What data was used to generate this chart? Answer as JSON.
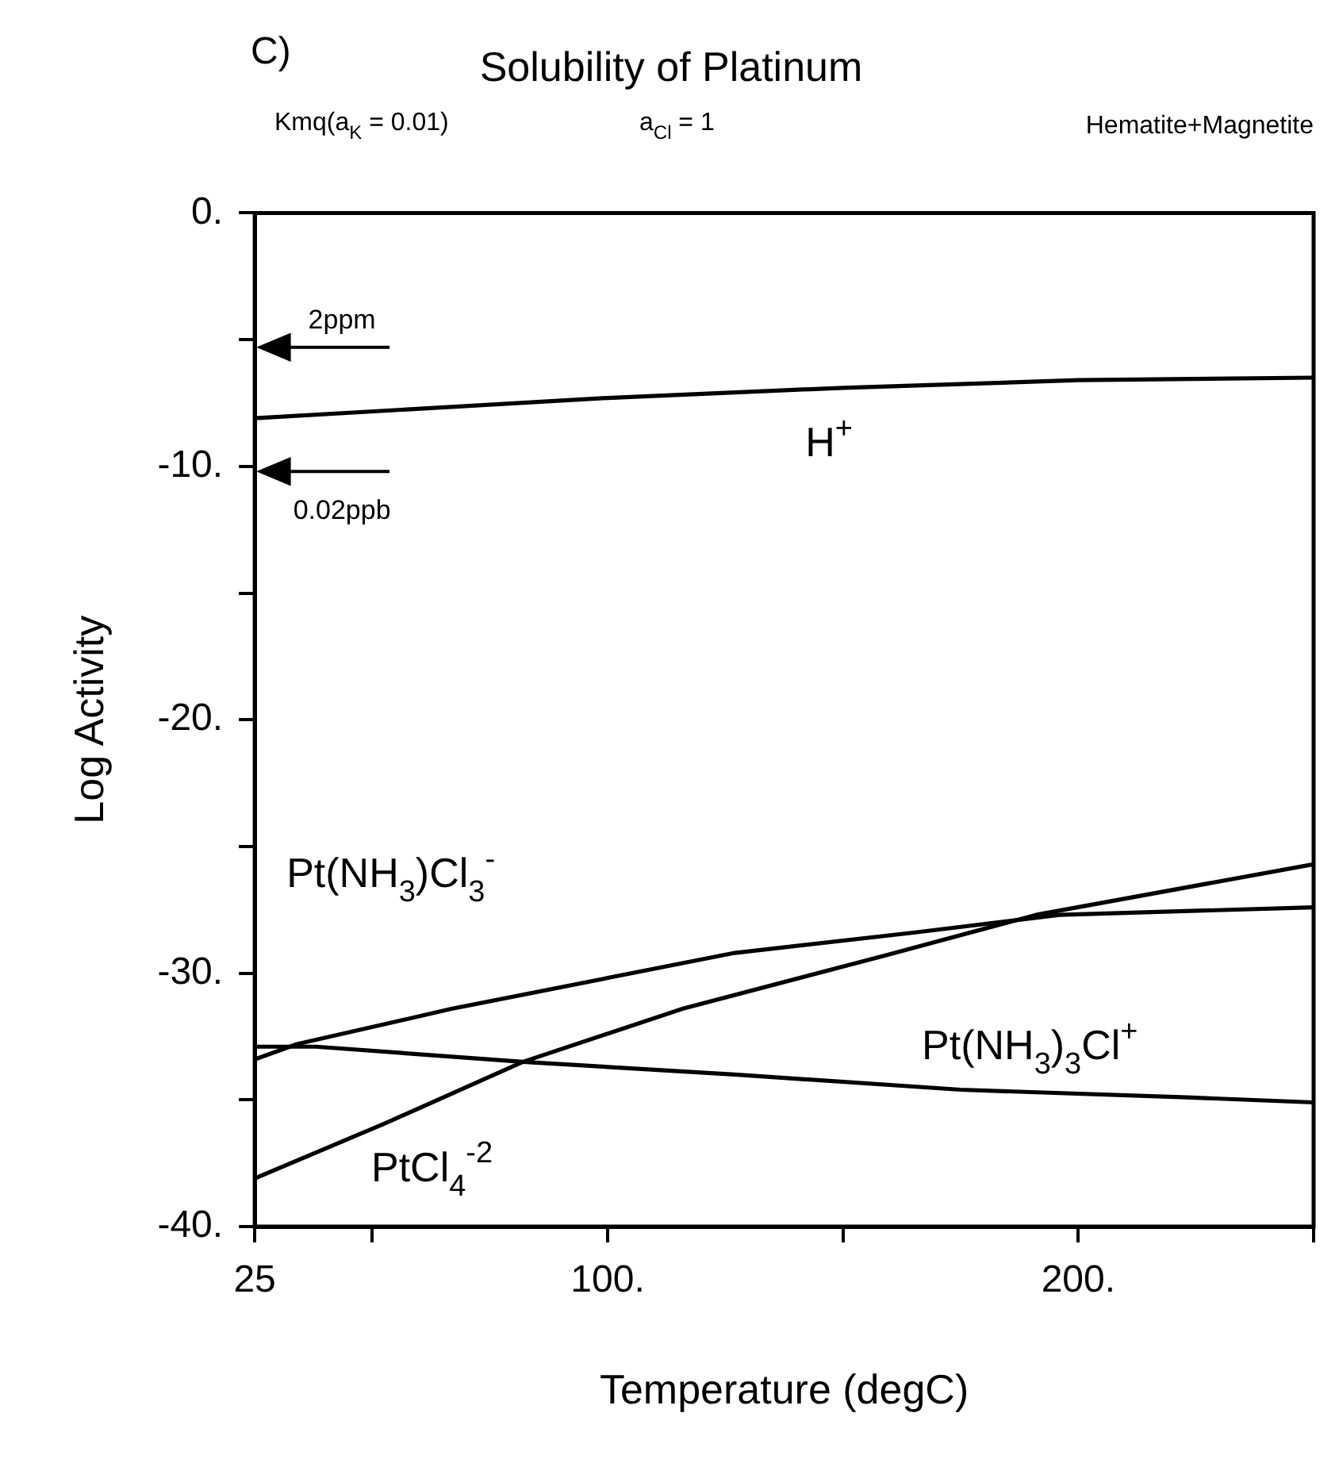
{
  "chart_data": {
    "type": "line",
    "title": "Solubility of Platinum",
    "xlabel": "Temperature (degC)",
    "ylabel": "Log Activity",
    "xlim": [
      25,
      250
    ],
    "ylim": [
      -40,
      0
    ],
    "xticks": [
      {
        "value": 25,
        "label": "25"
      },
      {
        "value": 50,
        "label": null
      },
      {
        "value": 100,
        "label": "100."
      },
      {
        "value": 150,
        "label": null
      },
      {
        "value": 200,
        "label": "200."
      },
      {
        "value": 250,
        "label": null
      }
    ],
    "yticks": [
      {
        "value": -40,
        "label": "-40."
      },
      {
        "value": -35,
        "label": null
      },
      {
        "value": -30,
        "label": "-30."
      },
      {
        "value": -25,
        "label": null
      },
      {
        "value": -20,
        "label": "-20."
      },
      {
        "value": -15,
        "label": null
      },
      {
        "value": -10,
        "label": "-10."
      },
      {
        "value": -5,
        "label": null
      },
      {
        "value": 0,
        "label": "0."
      }
    ],
    "grid": false,
    "marker": "none",
    "line_style": "solid",
    "series": [
      {
        "name": "H$^{+}$",
        "color": "#000000",
        "x": [
          25,
          100,
          150,
          200,
          250
        ],
        "values": [
          -8.1,
          -7.3,
          -6.9,
          -6.6,
          -6.5
        ]
      },
      {
        "name": "Pt(NH$_{3}$)Cl$_{3}$$^{-}$",
        "color": "#000000",
        "x": [
          25,
          34,
          67,
          127,
          165,
          196,
          250
        ],
        "values": [
          -33.4,
          -32.8,
          -31.4,
          -29.2,
          -28.4,
          -27.7,
          -27.4
        ]
      },
      {
        "name": "PtCl$_{4}$$^{-2}$",
        "color": "#000000",
        "x": [
          25,
          53,
          82,
          116,
          159,
          191,
          250
        ],
        "values": [
          -38.1,
          -35.9,
          -33.5,
          -31.4,
          -29.3,
          -27.7,
          -25.7
        ]
      },
      {
        "name": "Pt(NH$_{3}$)$_{3}$Cl$^{+}$",
        "color": "#000000",
        "x": [
          25,
          38,
          82,
          127,
          175,
          223,
          250
        ],
        "values": [
          -32.9,
          -32.9,
          -33.5,
          -34.0,
          -34.6,
          -34.9,
          -35.1
        ]
      }
    ],
    "annotations": [
      "C)",
      "Kmq(a$_{K}$ = 0.01)",
      "a$_{Cl}$ = 1",
      "Hematite+Magnetite"
    ],
    "ref_lines": [
      {
        "axis": "y",
        "value": -5.3,
        "label": "2ppm"
      },
      {
        "axis": "y",
        "value": -10.2,
        "label": "0.02ppb"
      }
    ]
  }
}
